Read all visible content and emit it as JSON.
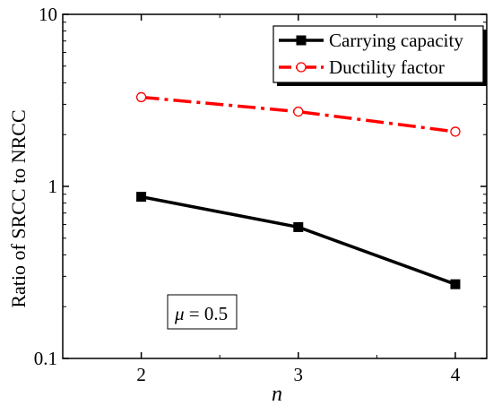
{
  "chart_data": {
    "type": "line",
    "xlabel": "n",
    "ylabel": "Ratio of SRCC to NRCC",
    "x": [
      2,
      3,
      4
    ],
    "x_ticks": [
      "2",
      "3",
      "4"
    ],
    "xlim": [
      1.5,
      4.2
    ],
    "yscale": "log",
    "ylim": [
      0.1,
      10
    ],
    "y_ticks": [
      "0.1",
      "1",
      "10"
    ],
    "grid": false,
    "legend_position": "top-right",
    "series": [
      {
        "name": "Carrying capacity",
        "values": [
          0.87,
          0.58,
          0.27
        ],
        "color": "#000000",
        "marker": "filled-square",
        "line": "solid"
      },
      {
        "name": "Ductility factor",
        "values": [
          3.3,
          2.72,
          2.08
        ],
        "color": "#ff0000",
        "marker": "open-circle",
        "line": "dash-dot"
      }
    ],
    "annotation": {
      "symbol": "μ",
      "text": " = 0.5"
    }
  }
}
